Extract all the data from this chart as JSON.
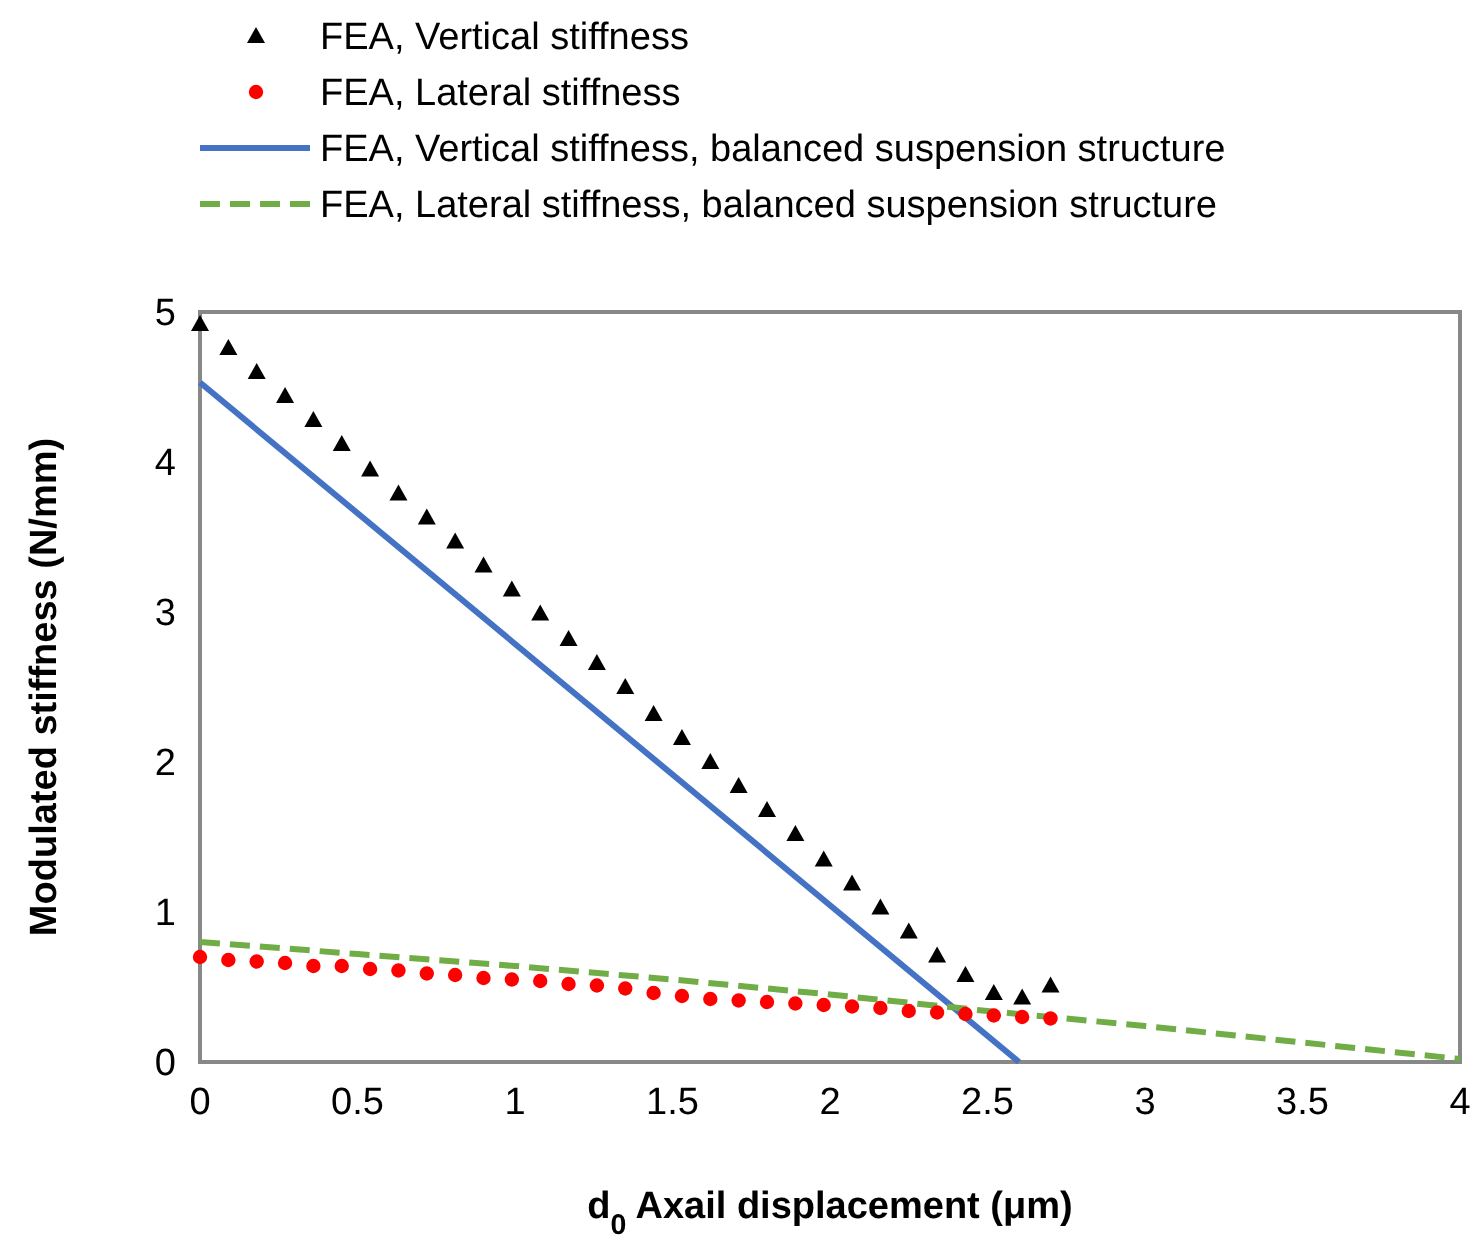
{
  "chart_data": {
    "type": "scatter",
    "xlabel": "d$_{0}$  Axail displacement (μm)",
    "ylabel": "Modulated stiffness (N/mm)",
    "xlim": [
      0,
      4
    ],
    "ylim": [
      0,
      5
    ],
    "xticks": [
      0,
      0.5,
      1,
      1.5,
      2,
      2.5,
      3,
      3.5,
      4
    ],
    "yticks": [
      0,
      1,
      2,
      3,
      4,
      5
    ],
    "grid": false,
    "legend": "top",
    "series": [
      {
        "name": "FEA, Vertical stiffness",
        "marker": "triangle",
        "color": "#000000",
        "x": [
          0,
          0.09,
          0.18,
          0.27,
          0.36,
          0.45,
          0.54,
          0.63,
          0.72,
          0.81,
          0.9,
          0.99,
          1.08,
          1.17,
          1.26,
          1.35,
          1.44,
          1.53,
          1.62,
          1.71,
          1.8,
          1.89,
          1.98,
          2.07,
          2.16,
          2.25,
          2.34,
          2.43,
          2.52,
          2.61,
          2.7
        ],
        "values": [
          4.92,
          4.76,
          4.6,
          4.44,
          4.28,
          4.12,
          3.95,
          3.79,
          3.63,
          3.47,
          3.31,
          3.15,
          2.99,
          2.82,
          2.66,
          2.5,
          2.32,
          2.16,
          2.0,
          1.84,
          1.68,
          1.52,
          1.35,
          1.19,
          1.03,
          0.87,
          0.71,
          0.58,
          0.46,
          0.43,
          0.51
        ]
      },
      {
        "name": "FEA, Lateral stiffness",
        "marker": "circle",
        "color": "#ff0000",
        "x": [
          0,
          0.09,
          0.18,
          0.27,
          0.36,
          0.45,
          0.54,
          0.63,
          0.72,
          0.81,
          0.9,
          0.99,
          1.08,
          1.17,
          1.26,
          1.35,
          1.44,
          1.53,
          1.62,
          1.71,
          1.8,
          1.89,
          1.98,
          2.07,
          2.16,
          2.25,
          2.34,
          2.43,
          2.52,
          2.61,
          2.7
        ],
        "values": [
          0.7,
          0.68,
          0.67,
          0.66,
          0.64,
          0.64,
          0.62,
          0.61,
          0.59,
          0.58,
          0.56,
          0.55,
          0.54,
          0.52,
          0.51,
          0.49,
          0.46,
          0.44,
          0.42,
          0.41,
          0.4,
          0.39,
          0.38,
          0.37,
          0.36,
          0.34,
          0.33,
          0.32,
          0.31,
          0.3,
          0.29
        ]
      },
      {
        "name": "FEA, Vertical stiffness, balanced suspension structure",
        "type": "line",
        "line_style": "solid",
        "color": "#4472c4",
        "x": [
          0,
          2.6
        ],
        "values": [
          4.53,
          0
        ]
      },
      {
        "name": "FEA, Lateral stiffness, balanced suspension structure",
        "type": "line",
        "line_style": "dashed",
        "color": "#70ad47",
        "x": [
          0,
          0.5,
          1,
          1.5,
          2,
          2.5,
          3,
          3.5,
          4
        ],
        "values": [
          0.8,
          0.72,
          0.64,
          0.55,
          0.45,
          0.34,
          0.24,
          0.13,
          0.02
        ]
      }
    ]
  }
}
